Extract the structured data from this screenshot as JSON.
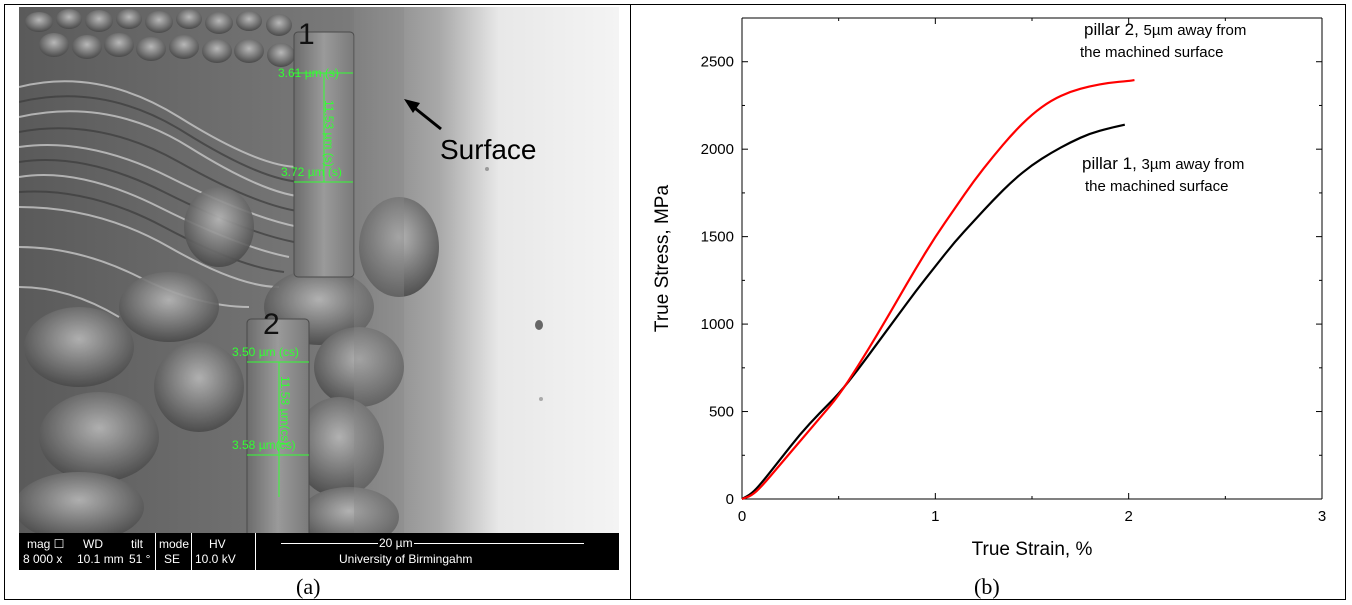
{
  "panel_a": {
    "surface_label": "Surface",
    "pillar_1_number": "1",
    "pillar_2_number": "2",
    "measurements": {
      "p1_top": "3.61 µm (s)",
      "p1_height": "11.53 µm (s)",
      "p1_bottom": "3.72 µm (s)",
      "p2_top": "3.50 µm (cs)",
      "p2_height": "11.58 µm(cs)",
      "p2_bottom": "3.58 µm(cs)"
    },
    "infobar": {
      "mag_label": "mag ☐",
      "mag_value": "8 000 x",
      "wd_label": "WD",
      "wd_value": "10.1 mm",
      "tilt_label": "tilt",
      "tilt_value": "51 °",
      "mode_label": "mode",
      "mode_value": "SE",
      "hv_label": "HV",
      "hv_value": "10.0 kV",
      "scale_value": "20 µm",
      "institution": "University of Birmingahm"
    },
    "caption": "(a)"
  },
  "panel_b": {
    "caption": "(b)",
    "annotations": {
      "pillar2_main": "pillar 2,",
      "pillar2_small": "5µm away from",
      "pillar2_line2": "the machined surface",
      "pillar1_main": "pillar 1,",
      "pillar1_small": "3µm away from",
      "pillar1_line2": "the machined surface"
    }
  },
  "chart_data": {
    "type": "line",
    "title": "",
    "xlabel": "True Strain, %",
    "ylabel": "True Stress, MPa",
    "xlim": [
      0,
      3
    ],
    "ylim": [
      0,
      2750
    ],
    "xticks": [
      0,
      1,
      2,
      3
    ],
    "yticks": [
      0,
      500,
      1000,
      1500,
      2000,
      2500
    ],
    "grid": false,
    "series": [
      {
        "name": "pillar 2",
        "color": "#ff0000",
        "x": [
          0,
          0.05,
          0.1,
          0.2,
          0.3,
          0.4,
          0.5,
          0.6,
          0.7,
          0.8,
          0.9,
          1.0,
          1.1,
          1.2,
          1.3,
          1.4,
          1.5,
          1.6,
          1.7,
          1.8,
          1.9,
          2.0,
          2.03
        ],
        "y": [
          0,
          20,
          70,
          200,
          330,
          460,
          590,
          760,
          940,
          1130,
          1320,
          1500,
          1660,
          1820,
          1960,
          2090,
          2200,
          2280,
          2330,
          2360,
          2380,
          2390,
          2395
        ]
      },
      {
        "name": "pillar 1",
        "color": "#000000",
        "x": [
          0,
          0.05,
          0.1,
          0.2,
          0.3,
          0.4,
          0.5,
          0.6,
          0.7,
          0.8,
          0.9,
          1.0,
          1.1,
          1.2,
          1.3,
          1.4,
          1.5,
          1.6,
          1.7,
          1.8,
          1.9,
          1.98
        ],
        "y": [
          0,
          30,
          90,
          230,
          370,
          490,
          600,
          740,
          890,
          1040,
          1190,
          1330,
          1470,
          1590,
          1710,
          1820,
          1910,
          1980,
          2040,
          2090,
          2120,
          2140
        ]
      }
    ]
  }
}
